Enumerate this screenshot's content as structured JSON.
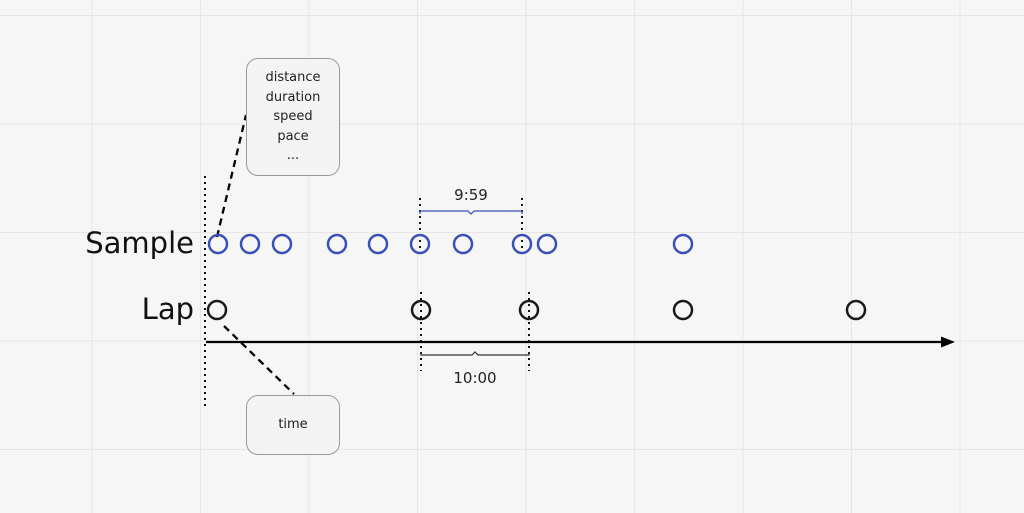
{
  "rows": {
    "sample_label": "Sample",
    "lap_label": "Lap"
  },
  "notes": {
    "sample_fields": [
      "distance",
      "duration",
      "speed",
      "pace",
      "..."
    ],
    "lap_field": "time"
  },
  "dimensions": {
    "sample_interval": "9:59",
    "lap_interval": "10:00"
  },
  "colors": {
    "sample": "#3a4fb8",
    "lap": "#1a1a1a",
    "axis": "#000000"
  }
}
